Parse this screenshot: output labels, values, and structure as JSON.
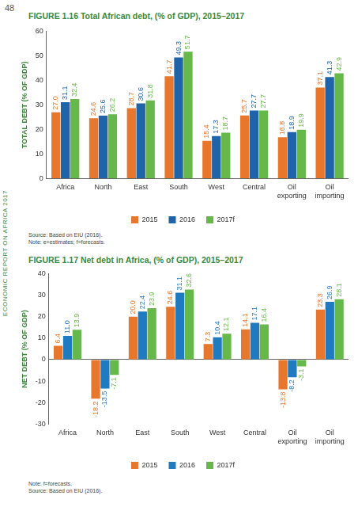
{
  "page": {
    "number": "48",
    "running_head": "ECONOMIC REPORT ON AFRICA 2017"
  },
  "chart_data": [
    {
      "type": "bar",
      "title": "FIGURE 1.16 Total African debt, (% of GDP), 2015–2017",
      "y_label": "TOTAL DEBT (% OF GDP)",
      "categories": [
        "Africa",
        "North",
        "East",
        "South",
        "West",
        "Central",
        "Oil exporting",
        "Oil importing"
      ],
      "series": [
        {
          "name": "2015",
          "color": "#e8772e",
          "values": [
            27.0,
            24.6,
            28.7,
            41.7,
            15.4,
            25.7,
            16.8,
            37.1
          ],
          "value_labels": [
            "27.0",
            "24.6",
            "28.7",
            "41.7",
            "15.4",
            "25.7",
            "16.8",
            "37.1"
          ]
        },
        {
          "name": "2016",
          "color": "#1f63a8",
          "values": [
            31.1,
            25.6,
            30.6,
            49.3,
            17.3,
            27.7,
            18.9,
            41.3
          ],
          "value_labels": [
            "31.1",
            "25.6",
            "30.6",
            "49.3",
            "17.3",
            "27.7",
            "18.9",
            "41.3"
          ]
        },
        {
          "name": "2017f",
          "color": "#67b84b",
          "values": [
            32.4,
            26.2,
            31.8,
            51.7,
            18.7,
            27.7,
            19.9,
            42.9
          ],
          "value_labels": [
            "32.4",
            "26.2",
            "31.8",
            "51.7",
            "18.7",
            "27.7",
            "19.9",
            "42.9"
          ]
        }
      ],
      "ylim": [
        0,
        60
      ],
      "yticks": [
        0,
        10,
        20,
        30,
        40,
        50,
        60
      ],
      "grid": false,
      "legend": "bottom",
      "data_labels": true,
      "notes": [
        "Source: Based on EIU (2016).",
        "Note: e=estimates; f=forecasts."
      ]
    },
    {
      "type": "bar",
      "title": "FIGURE 1.17 Net debt in Africa, (% of GDP), 2015–2017",
      "y_label": "NET DEBT (% OF GDP)",
      "categories": [
        "Africa",
        "North",
        "East",
        "South",
        "West",
        "Central",
        "Oil exporting",
        "Oil importing"
      ],
      "series": [
        {
          "name": "2015",
          "color": "#e8772e",
          "values": [
            6.4,
            -18.2,
            20.0,
            24.6,
            7.3,
            14.1,
            -13.8,
            23.3
          ],
          "value_labels": [
            "6.4",
            "-18.2",
            "20.0",
            "24.6",
            "7.3",
            "14.1",
            "-13.8",
            "23.3"
          ]
        },
        {
          "name": "2016",
          "color": "#1f7ac0",
          "values": [
            11.0,
            -13.5,
            22.4,
            31.1,
            10.4,
            17.1,
            -8.2,
            26.9
          ],
          "value_labels": [
            "11.0",
            "-13.5",
            "22.4",
            "31.1",
            "10.4",
            "17.1",
            "-8.2",
            "26.9"
          ]
        },
        {
          "name": "2017f",
          "color": "#67b84b",
          "values": [
            13.9,
            -7.1,
            23.9,
            32.6,
            12.1,
            16.4,
            -3.1,
            28.1
          ],
          "value_labels": [
            "13.9",
            "-7.1",
            "23.9",
            "32.6",
            "12.1",
            "16.4",
            "-3.1",
            "28.1"
          ]
        }
      ],
      "ylim": [
        -30,
        40
      ],
      "yticks": [
        -30,
        -20,
        -10,
        0,
        10,
        20,
        30,
        40
      ],
      "grid": false,
      "legend": "bottom",
      "data_labels": true,
      "notes": [
        "Note: f=forecasts.",
        "Source: Based on EIU (2016)."
      ]
    }
  ]
}
